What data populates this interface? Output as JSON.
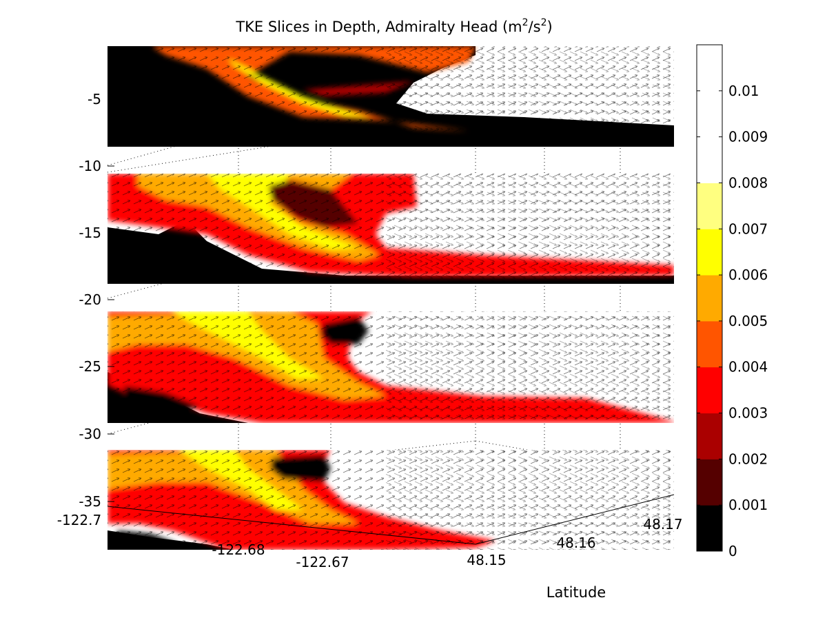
{
  "chart_data": {
    "type": "heatmap",
    "title_main": "TKE Slices in Depth, Admiralty Head (m",
    "title_sup1": "2",
    "title_mid": "/s",
    "title_sup2": "2",
    "title_end": ")",
    "zlabel": "",
    "ylabel": "Latitude",
    "xlabel": "",
    "z_ticks": [
      "-5",
      "-10",
      "-15",
      "-20",
      "-25",
      "-30",
      "-35"
    ],
    "lon_ticks": [
      "-122.7",
      "-122.68",
      "-122.67"
    ],
    "lon_tick_partial": "-122.68",
    "lat_ticks": [
      "48.15",
      "48.16",
      "48.17"
    ],
    "slices_depth": [
      -1,
      -11,
      -21,
      -31
    ],
    "colorbar": {
      "levels": [
        0,
        0.001,
        0.002,
        0.003,
        0.004,
        0.005,
        0.006,
        0.007,
        0.008,
        0.009,
        0.01,
        0.011
      ],
      "tick_labels": [
        "0",
        "0.001",
        "0.002",
        "0.003",
        "0.004",
        "0.005",
        "0.006",
        "0.007",
        "0.008",
        "0.009",
        "0.01"
      ],
      "colors": [
        "#000000",
        "#550000",
        "#aa0000",
        "#ff0000",
        "#ff5500",
        "#ffaa00",
        "#ffff00",
        "#ffff80",
        "#ffffff"
      ]
    },
    "grid": true,
    "vector_field": "velocity arrows overlaid on each slice"
  }
}
